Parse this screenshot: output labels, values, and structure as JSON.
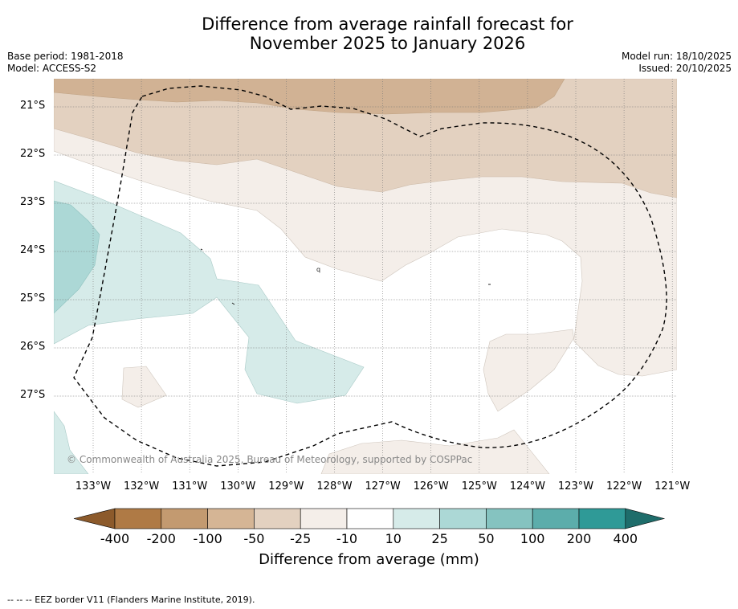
{
  "title": {
    "line1": "Difference from average rainfall forecast for",
    "line2": "November 2025 to January 2026"
  },
  "meta": {
    "base_period": "Base period: 1981-2018",
    "model": "Model: ACCESS-S2",
    "model_run": "Model run: 18/10/2025",
    "issued": "Issued: 20/10/2025"
  },
  "map": {
    "lat_labels": [
      "21°S",
      "22°S",
      "23°S",
      "24°S",
      "25°S",
      "26°S",
      "27°S"
    ],
    "lon_labels": [
      "133°W",
      "132°W",
      "131°W",
      "130°W",
      "129°W",
      "128°W",
      "127°W",
      "126°W",
      "125°W",
      "124°W",
      "123°W",
      "122°W",
      "121°W"
    ],
    "copyright": "© Commonwealth of Australia 2025, Bureau of Meteorology, supported by COSPPac",
    "stray_char": "q"
  },
  "colorbar": {
    "labels": [
      "-400",
      "-200",
      "-100",
      "-50",
      "-25",
      "-10",
      "10",
      "25",
      "50",
      "100",
      "200",
      "400"
    ],
    "colors": [
      "#8c5a2b",
      "#af7a45",
      "#c39a70",
      "#d5b595",
      "#e3d1c0",
      "#f4eee9",
      "#ffffff",
      "#d6ebe9",
      "#acd8d6",
      "#85c3c0",
      "#5cadab",
      "#2f9a97",
      "#1e6d6b"
    ],
    "title": "Difference from average (mm)"
  },
  "footer": "--  --  -- EEZ border V11 (Flanders Marine Institute, 2019)."
}
